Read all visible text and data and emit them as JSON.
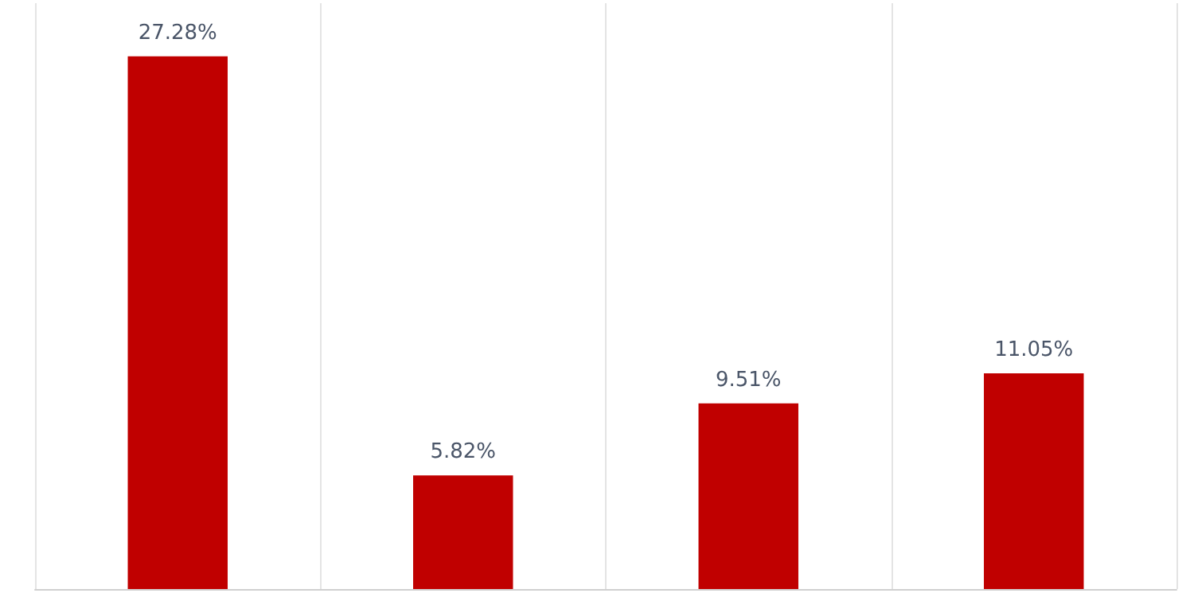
{
  "chart_data": {
    "type": "bar",
    "categories": [
      null,
      null,
      null,
      null
    ],
    "values": [
      27.28,
      5.82,
      9.51,
      11.05
    ],
    "color": "#c00000",
    "value_labels": [
      "27.28%",
      "5.82%",
      "9.51%",
      "11.05%"
    ],
    "grid": "x"
  }
}
